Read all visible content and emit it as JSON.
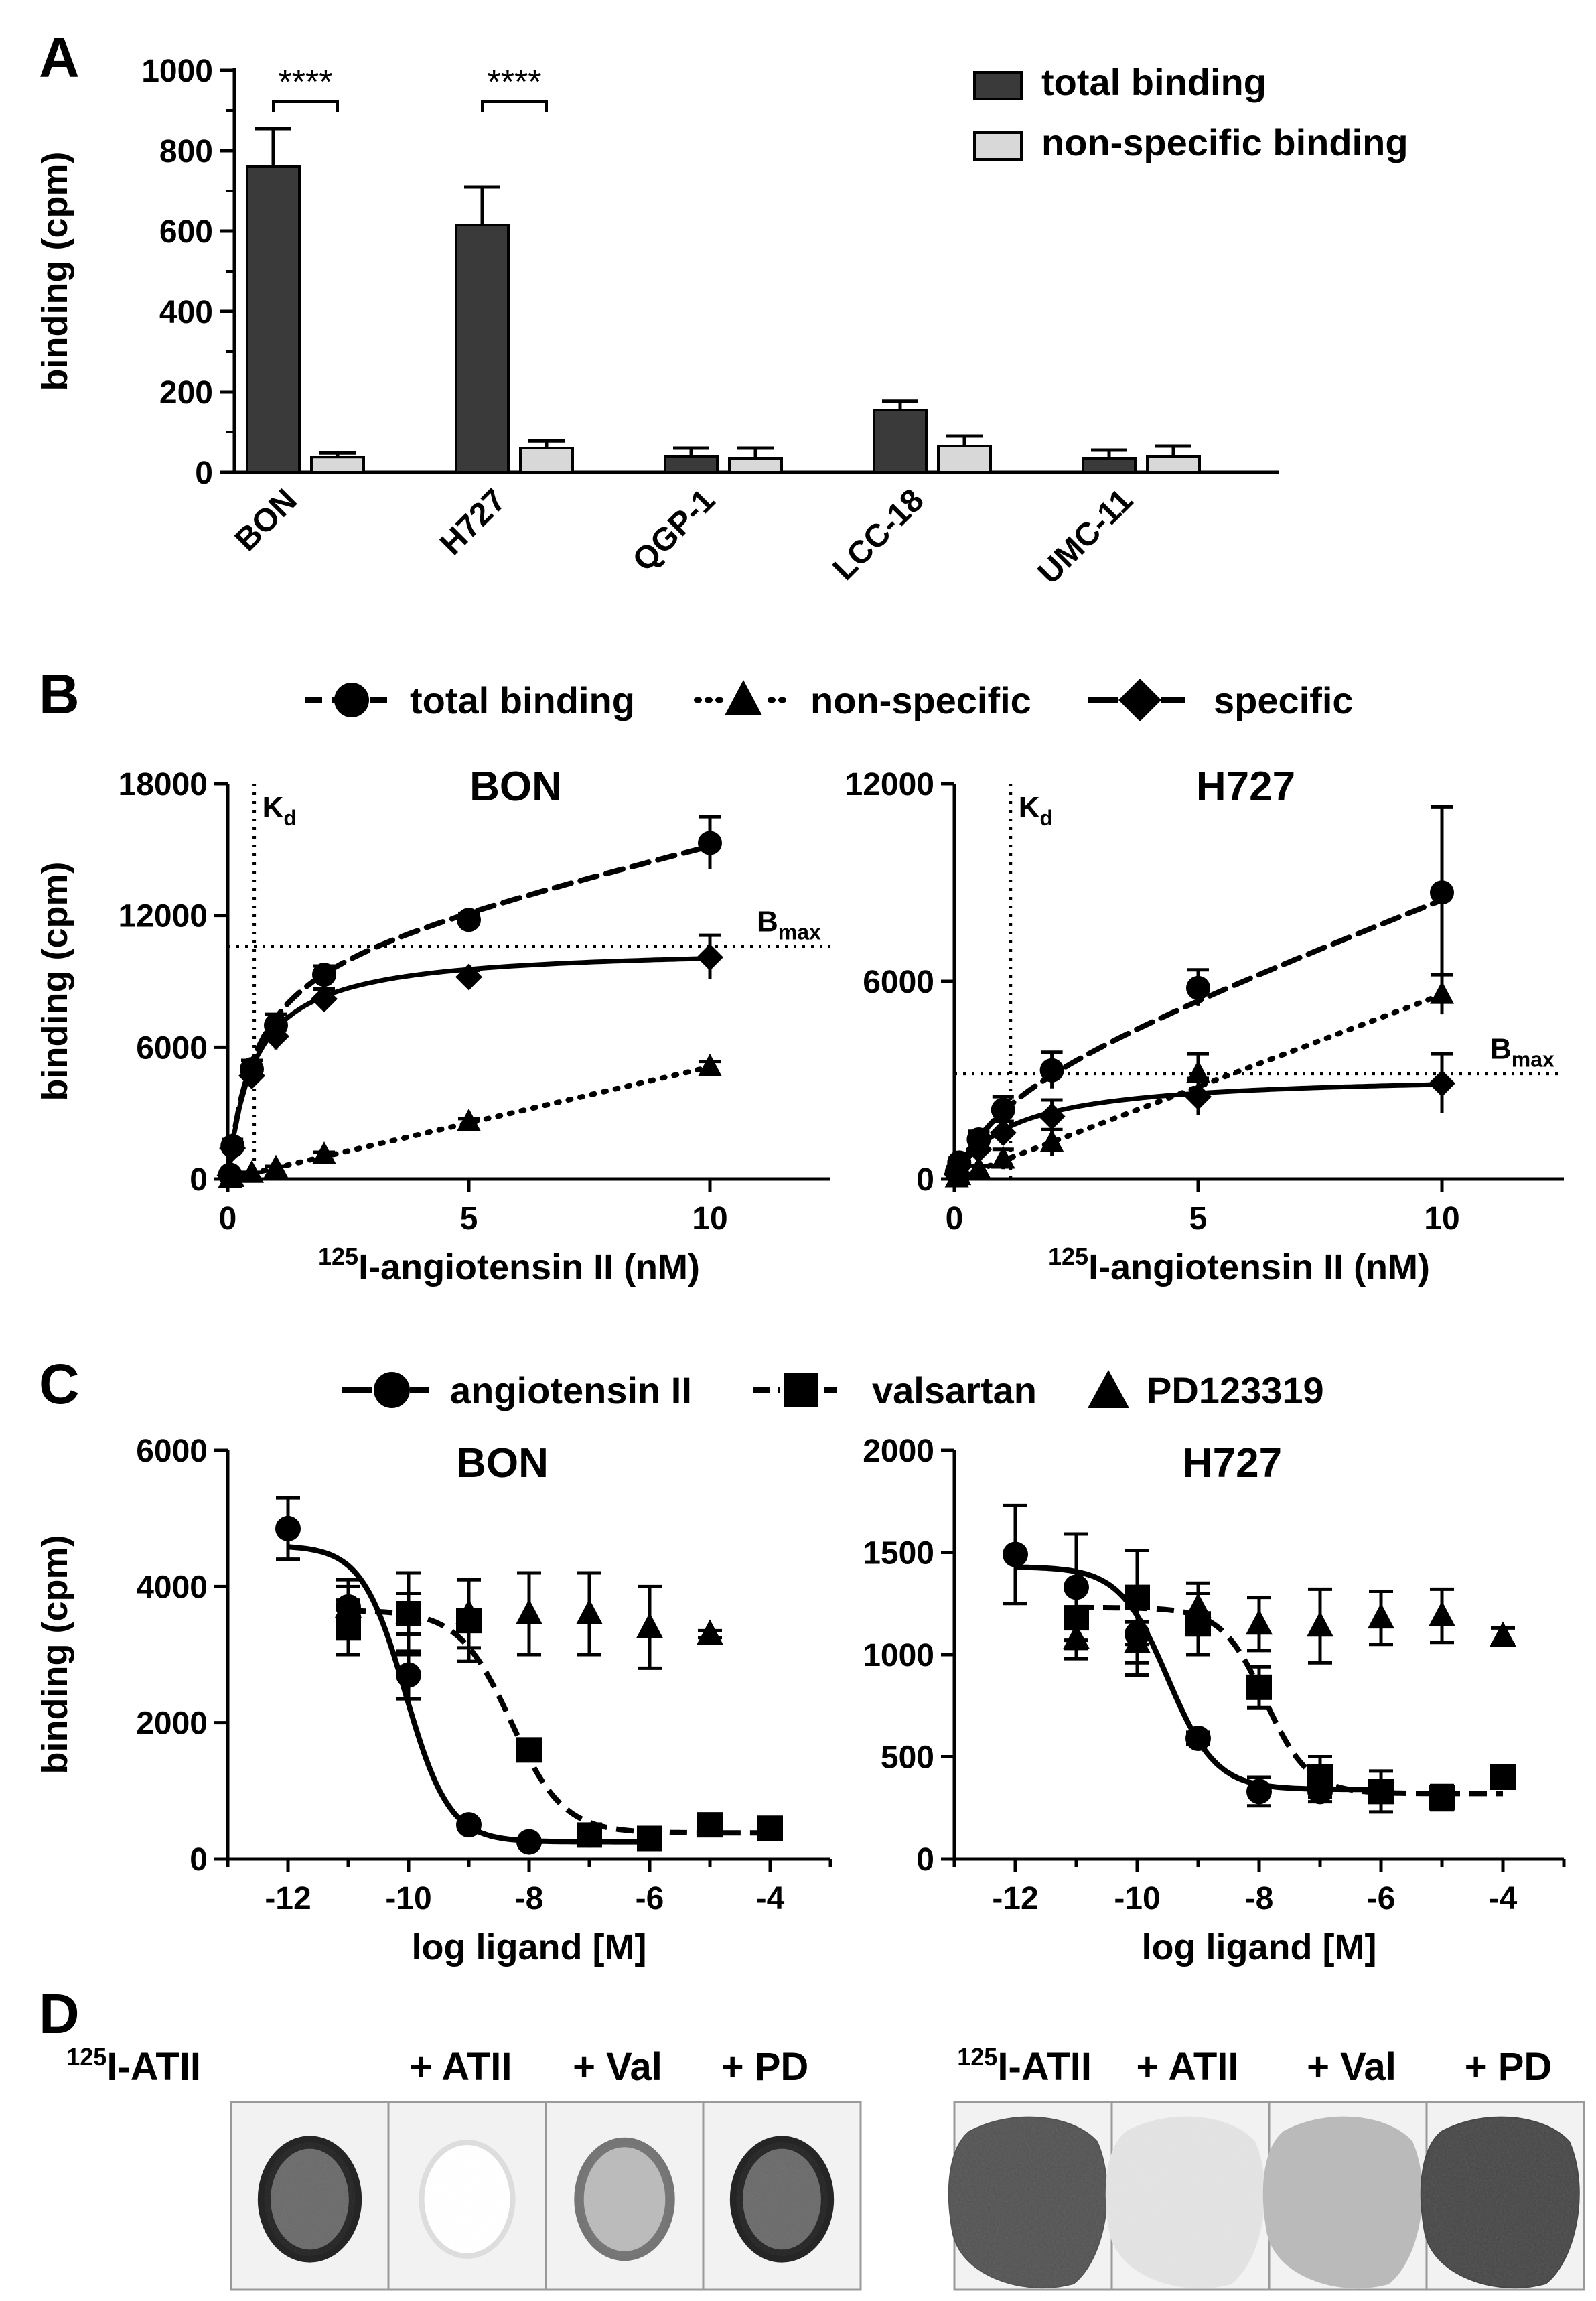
{
  "chart_data": [
    {
      "panel": "A",
      "type": "bar",
      "categories": [
        "BON",
        "H727",
        "QGP-1",
        "LCC-18",
        "UMC-11"
      ],
      "series": [
        {
          "name": "total binding",
          "color": "#3a3a3a",
          "values": [
            760,
            615,
            40,
            155,
            35
          ],
          "errors": [
            95,
            95,
            20,
            22,
            20
          ]
        },
        {
          "name": "non-specific binding",
          "color": "#d8d8d8",
          "values": [
            38,
            60,
            35,
            65,
            40
          ],
          "errors": [
            10,
            18,
            25,
            25,
            25
          ]
        }
      ],
      "xlabel": "",
      "ylabel": "binding (cpm)",
      "ylim": [
        0,
        1000
      ],
      "yticks": [
        "0",
        "200",
        "400",
        "600",
        "800",
        "1000"
      ],
      "significance": [
        "****",
        "****"
      ],
      "legend_position": "top-right"
    },
    {
      "panel": "B",
      "type": "line",
      "title": "BON",
      "xlabel_sup": "125",
      "xlabel": "I-angiotensin II (nM)",
      "ylabel": "binding (cpm)",
      "xlim": [
        0,
        12.5
      ],
      "ylim": [
        0,
        18000
      ],
      "xticks": [
        "0",
        "5",
        "10"
      ],
      "yticks": [
        "0",
        "6000",
        "12000",
        "18000"
      ],
      "kd_label": "K",
      "kd_sub": "d",
      "kd_value": 0.55,
      "bmax_label": "B",
      "bmax_sub": "max",
      "bmax_value": 10600,
      "series": [
        {
          "name": "total binding",
          "x": [
            0.05,
            0.1,
            0.5,
            1,
            2,
            5,
            10
          ],
          "y": [
            200,
            1500,
            5000,
            7000,
            9300,
            11800,
            15300
          ],
          "errors": [
            100,
            300,
            400,
            500,
            400,
            300,
            1200
          ]
        },
        {
          "name": "non-specific",
          "x": [
            0.05,
            0.1,
            0.5,
            1,
            2,
            5,
            10
          ],
          "y": [
            30,
            60,
            250,
            500,
            1100,
            2600,
            5100
          ],
          "errors": [
            20,
            30,
            60,
            80,
            120,
            150,
            250
          ]
        },
        {
          "name": "specific",
          "x": [
            0.05,
            0.1,
            0.5,
            1,
            2,
            5,
            10
          ],
          "y": [
            170,
            1400,
            4700,
            6500,
            8200,
            9200,
            10100
          ],
          "errors": [
            80,
            250,
            400,
            600,
            450,
            300,
            1000
          ]
        }
      ]
    },
    {
      "panel": "B",
      "type": "line",
      "title": "H727",
      "xlabel_sup": "125",
      "xlabel": "I-angiotensin II (nM)",
      "ylabel": "",
      "xlim": [
        0,
        12.5
      ],
      "ylim": [
        0,
        12000
      ],
      "xticks": [
        "0",
        "5",
        "10"
      ],
      "yticks": [
        "0",
        "6000",
        "12000"
      ],
      "kd_label": "K",
      "kd_sub": "d",
      "kd_value": 1.15,
      "bmax_label": "B",
      "bmax_sub": "max",
      "bmax_value": 3200,
      "series": [
        {
          "name": "total binding",
          "x": [
            0.05,
            0.1,
            0.5,
            1,
            2,
            5,
            10
          ],
          "y": [
            200,
            500,
            1200,
            2100,
            3300,
            5800,
            8700
          ],
          "errors": [
            80,
            150,
            250,
            400,
            550,
            550,
            2600
          ]
        },
        {
          "name": "non-specific",
          "x": [
            0.05,
            0.1,
            0.5,
            1,
            2,
            5,
            10
          ],
          "y": [
            30,
            100,
            300,
            600,
            1100,
            3200,
            5600
          ],
          "errors": [
            20,
            40,
            100,
            300,
            400,
            600,
            600
          ]
        },
        {
          "name": "specific",
          "x": [
            0.05,
            0.1,
            0.5,
            1,
            2,
            5,
            10
          ],
          "y": [
            150,
            400,
            900,
            1400,
            1900,
            2500,
            2900
          ],
          "errors": [
            80,
            150,
            250,
            350,
            500,
            550,
            900
          ]
        }
      ]
    },
    {
      "panel": "C",
      "type": "scatter",
      "title": "BON",
      "xlabel": "log ligand [M]",
      "ylabel": "binding (cpm)",
      "xlim": [
        -13,
        -3
      ],
      "ylim": [
        0,
        6000
      ],
      "xticks": [
        "-12",
        "-10",
        "-8",
        "-6",
        "-4"
      ],
      "yticks": [
        "0",
        "2000",
        "4000",
        "6000"
      ],
      "series": [
        {
          "name": "angiotensin II",
          "x": [
            -12,
            -11,
            -10,
            -9,
            -8,
            -7,
            -6
          ],
          "y": [
            4850,
            3700,
            2700,
            500,
            250,
            350,
            300
          ],
          "errors": [
            450,
            400,
            350,
            60,
            40,
            60,
            60
          ],
          "fit": {
            "top": 4600,
            "bottom": 250,
            "logec50": -10.05,
            "hill": 1.2
          }
        },
        {
          "name": "valsartan",
          "x": [
            -11,
            -10,
            -9,
            -8,
            -7,
            -6,
            -5,
            -4
          ],
          "y": [
            3400,
            3600,
            3500,
            1600,
            350,
            300,
            500,
            450
          ],
          "errors": [
            400,
            600,
            600,
            100,
            150,
            100,
            80,
            60
          ],
          "fit": {
            "top": 3650,
            "bottom": 380,
            "logec50": -8.3,
            "hill": 1.0
          }
        },
        {
          "name": "PD123319",
          "x": [
            -11,
            -10,
            -9,
            -8,
            -7,
            -6,
            -5
          ],
          "y": [
            3700,
            3600,
            3600,
            3600,
            3600,
            3400,
            3300
          ],
          "errors": [
            300,
            300,
            500,
            600,
            600,
            600,
            50
          ]
        }
      ]
    },
    {
      "panel": "C",
      "type": "scatter",
      "title": "H727",
      "xlabel": "log ligand [M]",
      "ylabel": "",
      "xlim": [
        -13,
        -3
      ],
      "ylim": [
        0,
        2000
      ],
      "xticks": [
        "-12",
        "-10",
        "-8",
        "-6",
        "-4"
      ],
      "yticks": [
        "0",
        "500",
        "1000",
        "1500",
        "2000"
      ],
      "series": [
        {
          "name": "angiotensin II",
          "x": [
            -12,
            -11,
            -10,
            -9,
            -8,
            -7,
            -6
          ],
          "y": [
            1490,
            1330,
            1100,
            590,
            330,
            330,
            330
          ],
          "errors": [
            240,
            260,
            200,
            30,
            70,
            50,
            50
          ],
          "fit": {
            "top": 1430,
            "bottom": 340,
            "logec50": -9.5,
            "hill": 1.1
          }
        },
        {
          "name": "valsartan",
          "x": [
            -11,
            -10,
            -9,
            -8,
            -7,
            -6,
            -5,
            -4
          ],
          "y": [
            1180,
            1280,
            1150,
            840,
            400,
            330,
            300,
            400
          ],
          "errors": [
            150,
            230,
            150,
            100,
            100,
            100,
            60,
            40
          ],
          "fit": {
            "top": 1230,
            "bottom": 320,
            "logec50": -7.9,
            "hill": 1.2
          }
        },
        {
          "name": "PD123319",
          "x": [
            -11,
            -10,
            -9,
            -8,
            -7,
            -6,
            -5,
            -4
          ],
          "y": [
            1080,
            1060,
            1230,
            1150,
            1140,
            1180,
            1190,
            1090
          ],
          "errors": [
            100,
            100,
            120,
            130,
            180,
            130,
            130,
            40
          ]
        }
      ]
    }
  ],
  "panels": {
    "A": "A",
    "B": "B",
    "C": "C",
    "D": "D"
  },
  "legend_b": {
    "total": "total binding",
    "nonspecific": "non-specific",
    "specific": "specific"
  },
  "legend_c": {
    "angiotensin": "angiotensin II",
    "valsartan": "valsartan",
    "pd": "PD123319"
  },
  "panel_d": {
    "left": {
      "labels_sup": "125",
      "labels": [
        "I-ATII",
        "+ ATII",
        "+ Val",
        "+ PD"
      ],
      "intensities": [
        0.95,
        0.15,
        0.6,
        0.95
      ]
    },
    "right": {
      "labels_sup": "125",
      "labels": [
        "I-ATII",
        "+ ATII",
        "+ Val",
        "+ PD"
      ],
      "intensities": [
        0.75,
        0.12,
        0.3,
        0.8
      ]
    }
  }
}
